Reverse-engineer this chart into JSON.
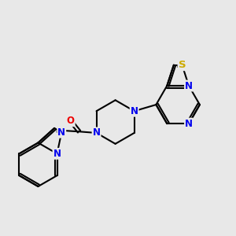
{
  "background_color": "#e8e8e8",
  "bond_color": "#000000",
  "bond_width": 1.5,
  "atom_colors": {
    "N": "#0000ee",
    "O": "#ee0000",
    "S": "#ccaa00",
    "C": "#000000"
  },
  "font_size_atom": 8.5,
  "fig_bg": "#e8e8e8"
}
